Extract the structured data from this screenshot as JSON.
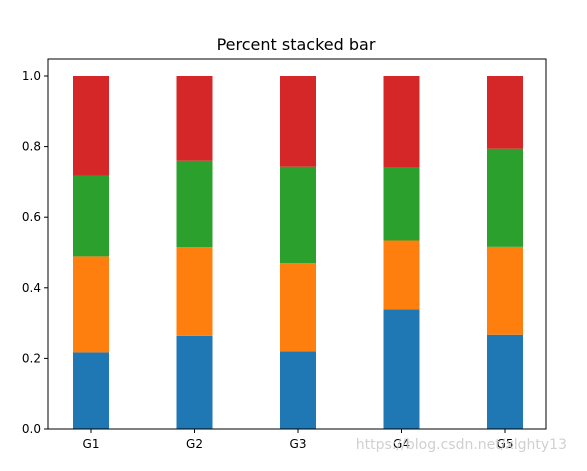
{
  "chart_data": {
    "type": "bar",
    "stacked": true,
    "title": "Percent stacked bar",
    "categories": [
      "G1",
      "G2",
      "G3",
      "G4",
      "G5"
    ],
    "series": [
      {
        "color": "#1f77b4",
        "values": [
          0.217,
          0.264,
          0.22,
          0.339,
          0.267
        ]
      },
      {
        "color": "#ff7f0e",
        "values": [
          0.272,
          0.251,
          0.25,
          0.195,
          0.249
        ]
      },
      {
        "color": "#2ca02c",
        "values": [
          0.228,
          0.245,
          0.273,
          0.206,
          0.278
        ]
      },
      {
        "color": "#d62728",
        "values": [
          0.283,
          0.24,
          0.257,
          0.26,
          0.206
        ]
      }
    ],
    "yticks": [
      "0.0",
      "0.2",
      "0.4",
      "0.6",
      "0.8",
      "1.0"
    ],
    "ylim": [
      0,
      1.0
    ],
    "grid": false,
    "legend": "none"
  },
  "watermark": "https://blog.csdn.net/xlghty13"
}
